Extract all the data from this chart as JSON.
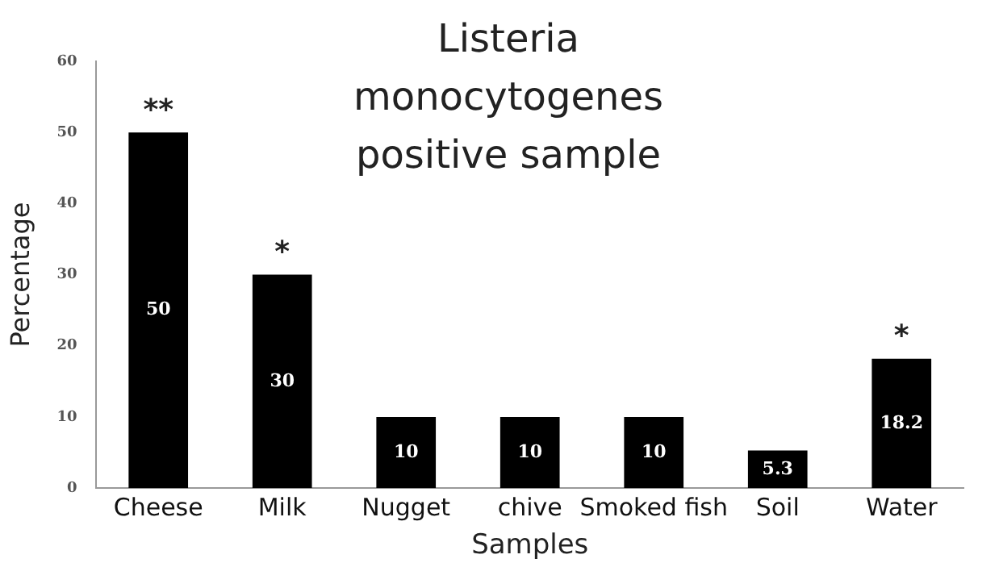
{
  "chart_data": {
    "type": "bar",
    "title": "Listeria monocytogenes positive sample",
    "xlabel": "Samples",
    "ylabel": "Percentage",
    "categories": [
      "Cheese",
      "Milk",
      "Nugget",
      "chive",
      "Smoked fish",
      "Soil",
      "Water"
    ],
    "values": [
      50,
      30,
      10,
      10,
      10,
      5.3,
      18.2
    ],
    "color": "#000000",
    "value_labels": [
      "50",
      "30",
      "10",
      "10",
      "10",
      "5.3",
      "18.2"
    ],
    "ylim": [
      0,
      60
    ],
    "yticks": [
      0,
      10,
      20,
      30,
      40,
      50,
      60
    ],
    "grid": false,
    "legend": false,
    "annotations": [
      {
        "text": "**",
        "x": "Cheese",
        "y": 50
      },
      {
        "text": "*",
        "x": "Milk",
        "y": 30
      },
      {
        "text": "*",
        "x": "Water",
        "y": 18.2
      }
    ]
  }
}
